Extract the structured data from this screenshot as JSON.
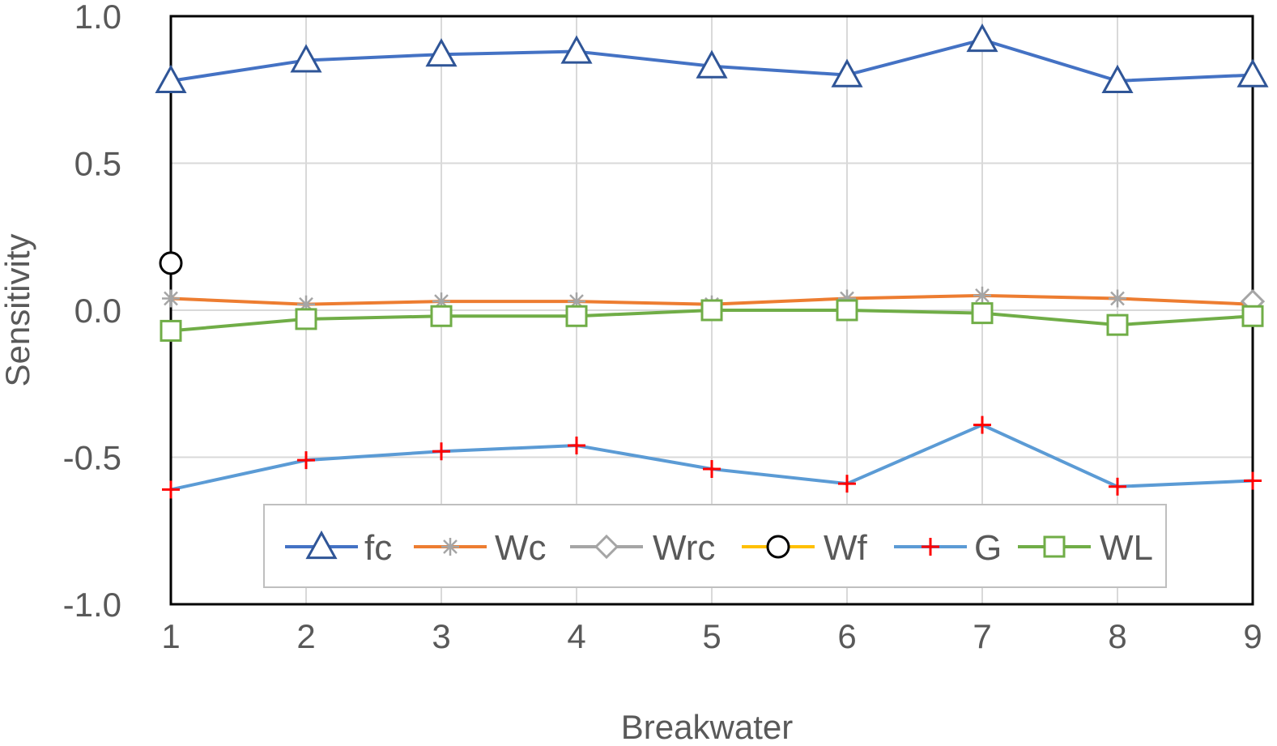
{
  "chart_data": {
    "type": "line",
    "title": "",
    "xlabel": "Breakwater",
    "ylabel": "Sensitivity",
    "x": [
      1,
      2,
      3,
      4,
      5,
      6,
      7,
      8,
      9
    ],
    "xlim": [
      1,
      9
    ],
    "ylim": [
      -1.0,
      1.0
    ],
    "yticks": [
      "-1.0",
      "-0.5",
      "0.0",
      "0.5",
      "1.0"
    ],
    "grid": true,
    "legend_position": "bottom-inside",
    "series": [
      {
        "name": "fc",
        "color": "#4472C4",
        "marker": "triangle",
        "values": [
          0.78,
          0.85,
          0.87,
          0.88,
          0.83,
          0.8,
          0.92,
          0.78,
          0.8
        ]
      },
      {
        "name": "Wc",
        "color": "#ED7D31",
        "marker": "star",
        "values": [
          0.04,
          0.02,
          0.03,
          0.03,
          0.02,
          0.04,
          0.05,
          0.04,
          0.02
        ]
      },
      {
        "name": "Wrc",
        "color": "#A5A5A5",
        "marker": "diamond",
        "values": [
          null,
          null,
          null,
          null,
          null,
          null,
          null,
          null,
          0.03
        ]
      },
      {
        "name": "Wf",
        "color": "#FFC000",
        "marker": "circle",
        "values": [
          0.16,
          null,
          null,
          null,
          null,
          null,
          null,
          null,
          null
        ]
      },
      {
        "name": "G",
        "color": "#5B9BD5",
        "marker": "plus",
        "values": [
          -0.61,
          -0.51,
          -0.48,
          -0.46,
          -0.54,
          -0.59,
          -0.39,
          -0.6,
          -0.58
        ]
      },
      {
        "name": "WL",
        "color": "#70AD47",
        "marker": "square",
        "values": [
          -0.07,
          -0.03,
          -0.02,
          -0.02,
          0.0,
          0.0,
          -0.01,
          -0.05,
          -0.02
        ]
      }
    ]
  }
}
